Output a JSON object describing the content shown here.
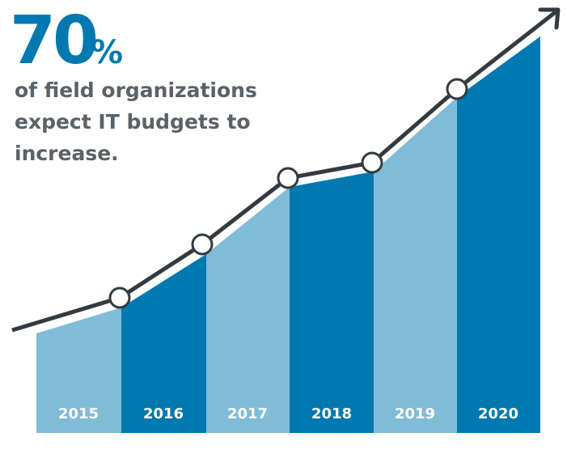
{
  "headline": {
    "stat": "70",
    "stat_unit": "%",
    "lines": [
      "of field organizations",
      "expect IT budgets to",
      "increase."
    ]
  },
  "years": [
    "2015",
    "2016",
    "2017",
    "2018",
    "2019",
    "2020"
  ]
}
